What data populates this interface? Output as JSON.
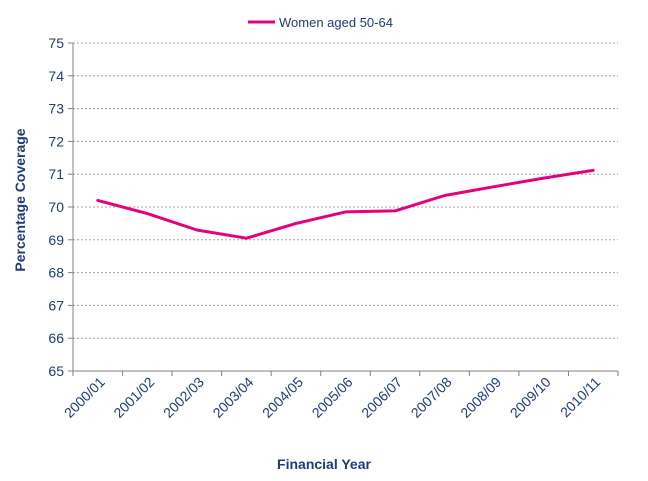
{
  "chart_data": {
    "type": "line",
    "title": "",
    "xlabel": "Financial Year",
    "ylabel": "Percentage Coverage",
    "ylim": [
      65,
      75
    ],
    "yticks": [
      65,
      66,
      67,
      68,
      69,
      70,
      71,
      72,
      73,
      74,
      75
    ],
    "categories": [
      "2000/01",
      "2001/02",
      "2002/03",
      "2003/04",
      "2004/05",
      "2005/06",
      "2006/07",
      "2007/08",
      "2008/09",
      "2009/10",
      "2010/11"
    ],
    "series": [
      {
        "name": "Women aged 50-64",
        "color": "#e6007e",
        "values": [
          70.2,
          69.8,
          69.3,
          69.05,
          69.5,
          69.85,
          69.88,
          70.35,
          70.62,
          70.88,
          71.12
        ]
      }
    ],
    "grid": true,
    "grid_style": "dotted horizontal",
    "legend_position": "top-center",
    "text_color": "#1f3b7a",
    "axis_color": "#808080"
  }
}
